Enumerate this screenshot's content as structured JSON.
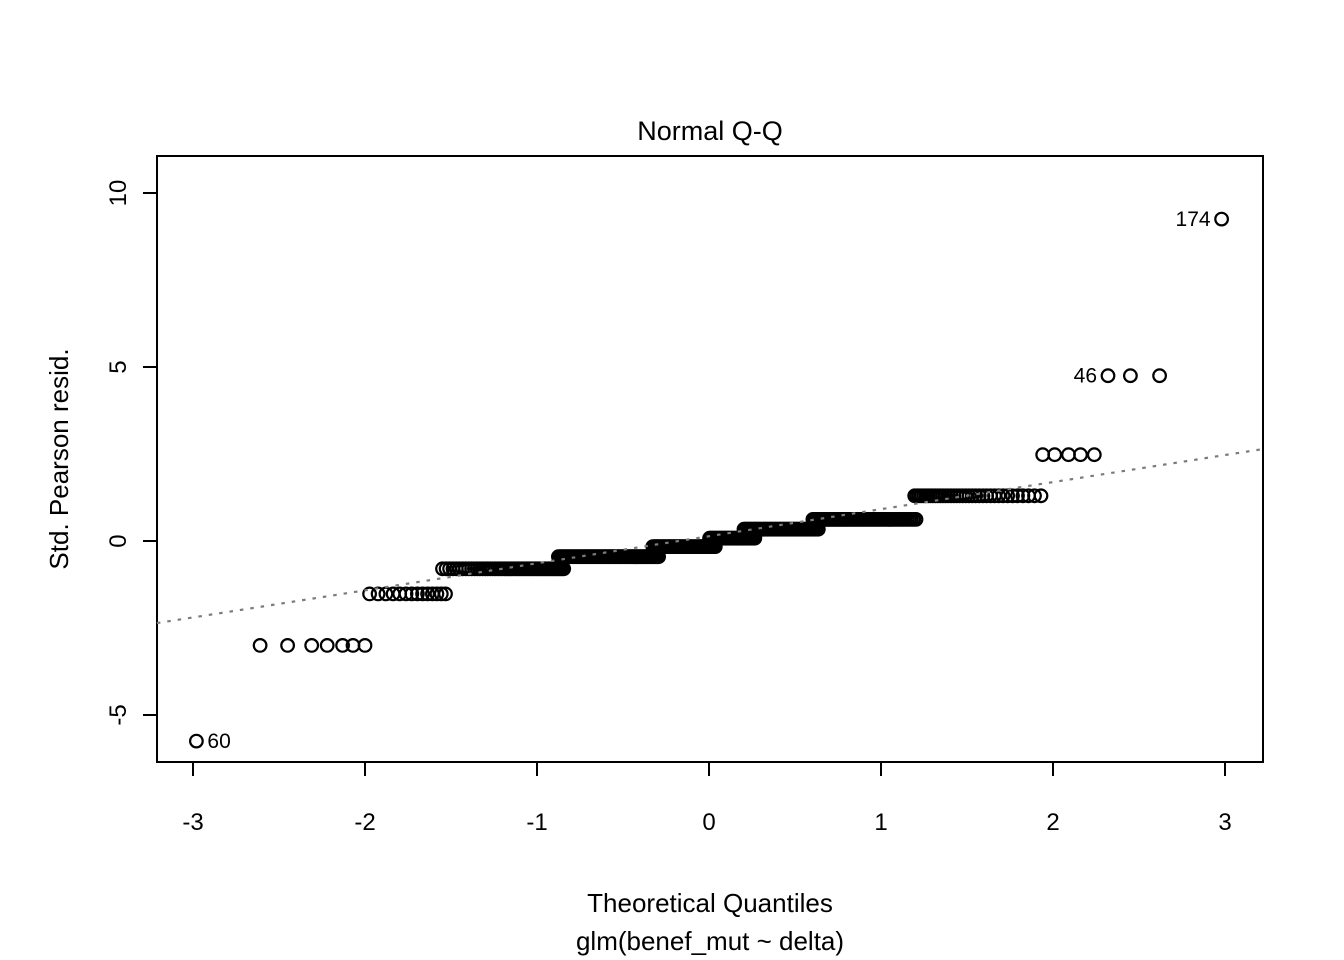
{
  "chart_data": {
    "type": "scatter",
    "title": "Normal Q-Q",
    "xlabel": "Theoretical Quantiles",
    "xlabel2": "glm(benef_mut ~ delta)",
    "ylabel": "Std. Pearson resid.",
    "xlim": [
      -3.21,
      3.22
    ],
    "ylim": [
      -6.35,
      11.06
    ],
    "x_ticks": [
      -3,
      -2,
      -1,
      0,
      1,
      2,
      3
    ],
    "y_ticks": [
      -5,
      0,
      5,
      10
    ],
    "grid": false,
    "legend": null,
    "reference_line": {
      "style": "dotted",
      "x1": -3.21,
      "y1": -2.36,
      "x2": 3.22,
      "y2": 2.64
    },
    "point_runs": [
      {
        "y": -5.75,
        "xs": [
          -2.98
        ],
        "label": "60",
        "label_side": "right"
      },
      {
        "y": -3.0,
        "xs": [
          -2.61,
          -2.45,
          -2.31,
          -2.22,
          -2.13,
          -2.07,
          -2.0
        ]
      },
      {
        "y": -1.52,
        "x_start": -2.0,
        "x_end": -1.52,
        "count": 14
      },
      {
        "y": -0.8,
        "x_start": -1.56,
        "x_end": -0.84,
        "count": 55
      },
      {
        "y": -0.45,
        "x_start": -0.88,
        "x_end": -0.29,
        "count": 80
      },
      {
        "y": -0.16,
        "x_start": -0.33,
        "x_end": 0.04,
        "count": 55
      },
      {
        "y": 0.08,
        "x_start": 0.0,
        "x_end": 0.27,
        "count": 38
      },
      {
        "y": 0.34,
        "x_start": 0.2,
        "x_end": 0.64,
        "count": 55
      },
      {
        "y": 0.62,
        "x_start": 0.6,
        "x_end": 1.21,
        "count": 62
      },
      {
        "y": 1.3,
        "x_start": 1.19,
        "x_end": 1.95,
        "count": 38
      },
      {
        "y": 2.48,
        "xs": [
          1.94,
          2.01,
          2.09,
          2.16,
          2.24
        ]
      },
      {
        "y": 4.75,
        "xs": [
          2.32,
          2.45,
          2.62
        ],
        "label": "46",
        "label_side": "left"
      },
      {
        "y": 9.25,
        "xs": [
          2.98
        ],
        "label": "174",
        "label_side": "left"
      }
    ],
    "colors": {
      "foreground": "#000000",
      "background": "#ffffff",
      "reference_line": "#7b7b7b"
    }
  }
}
